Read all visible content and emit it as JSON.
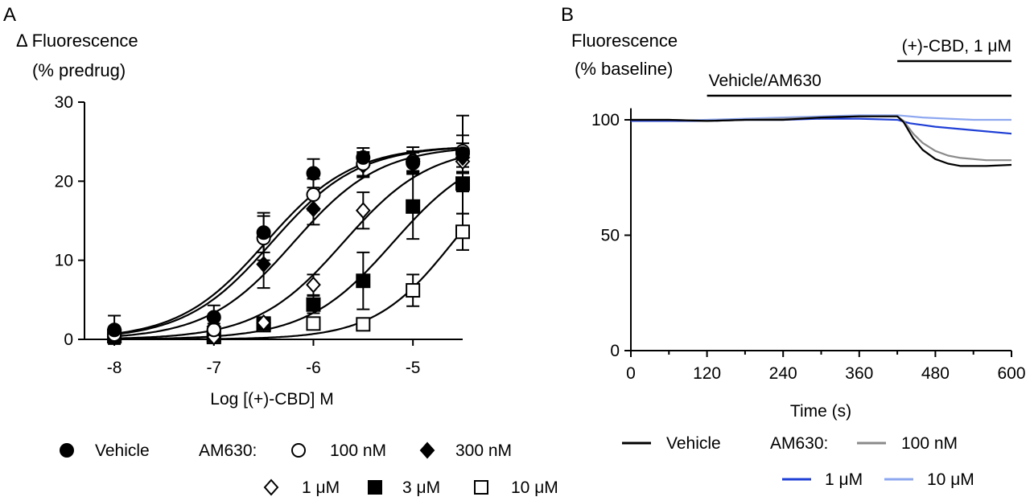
{
  "chart_data": [
    {
      "panel": "A",
      "type": "scatter",
      "ylabel_lines": [
        "Δ Fluorescence",
        "(% predrug)"
      ],
      "xlabel": "Log [(+)-CBD] M",
      "xlim": [
        -8.3,
        -4.5
      ],
      "ylim": [
        0,
        30
      ],
      "xticks": [
        -8,
        -7,
        -6,
        -5
      ],
      "xtick_labels": [
        "-8",
        "-7",
        "-6",
        "-5"
      ],
      "yticks": [
        0,
        10,
        20,
        30
      ],
      "ytick_labels": [
        "0",
        "10",
        "20",
        "30"
      ],
      "grid": false,
      "legend_position": "bottom",
      "legend_group_label": "AM630:",
      "fit": "sigmoidal concentration-response curves",
      "series": [
        {
          "name": "Vehicle",
          "marker": "filled-circle",
          "x": [
            -8,
            -7,
            -6.5,
            -6,
            -5.5,
            -5,
            -4.5
          ],
          "y": [
            1.2,
            2.8,
            13.5,
            21,
            23,
            22.3,
            23.5
          ],
          "err": [
            1.8,
            1.5,
            2.5,
            1.8,
            1.2,
            1.3,
            4.8
          ],
          "fit": {
            "bottom": 0,
            "top": 24.5,
            "logEC50": -6.48,
            "hill": 1.0
          }
        },
        {
          "name": "100 nM",
          "marker": "open-circle",
          "x": [
            -8,
            -7,
            -6.5,
            -6,
            -5.5,
            -5,
            -4.5
          ],
          "y": [
            0.6,
            1.2,
            12.8,
            18.3,
            22.2,
            22.5,
            23.8
          ],
          "err": [
            0.8,
            0.8,
            2.8,
            2.0,
            1.5,
            1.3,
            2.0
          ],
          "fit": {
            "bottom": 0,
            "top": 24.5,
            "logEC50": -6.42,
            "hill": 1.0
          }
        },
        {
          "name": "300 nM",
          "marker": "filled-diamond",
          "x": [
            -8,
            -7,
            -6.5,
            -6,
            -5.5,
            -5,
            -4.5
          ],
          "y": [
            0.7,
            1.6,
            9.5,
            16.5,
            22.0,
            22.5,
            23.0
          ],
          "err": [
            0.6,
            1.0,
            3.0,
            2.0,
            1.5,
            1.3,
            1.8
          ],
          "fit": {
            "bottom": 0,
            "top": 24.5,
            "logEC50": -6.2,
            "hill": 1.0
          }
        },
        {
          "name": "1 μM",
          "marker": "open-diamond",
          "x": [
            -8,
            -7,
            -6.5,
            -6,
            -5.5,
            -5,
            -4.5
          ],
          "y": [
            0.4,
            0.3,
            2.1,
            6.9,
            16.3,
            22.8,
            22.5
          ],
          "err": [
            0.3,
            0.4,
            0.6,
            1.3,
            2.3,
            1.5,
            1.5
          ],
          "fit": {
            "bottom": 0,
            "top": 24.5,
            "logEC50": -5.7,
            "hill": 1.0
          }
        },
        {
          "name": "3 μM",
          "marker": "filled-square",
          "x": [
            -8,
            -7,
            -6.5,
            -6,
            -5.5,
            -5,
            -4.5
          ],
          "y": [
            0.4,
            0.5,
            2.0,
            4.4,
            7.4,
            16.8,
            19.7
          ],
          "err": [
            0.3,
            0.4,
            0.5,
            1.1,
            3.6,
            4.1,
            3.8
          ],
          "fit": {
            "bottom": 0,
            "top": 24.5,
            "logEC50": -5.2,
            "hill": 1.0
          }
        },
        {
          "name": "10 μM",
          "marker": "open-square",
          "x": [
            -8,
            -7,
            -6.5,
            -6,
            -5.5,
            -5,
            -4.5
          ],
          "y": [
            0.4,
            0.3,
            1.8,
            2.0,
            1.9,
            6.2,
            13.6
          ],
          "err": [
            0.3,
            0.3,
            0.4,
            0.5,
            0.4,
            2.0,
            2.3
          ],
          "fit": {
            "bottom": 0,
            "top": 24.5,
            "logEC50": -4.6,
            "hill": 1.1
          }
        }
      ]
    },
    {
      "panel": "B",
      "type": "line",
      "ylabel_lines": [
        "Fluorescence",
        "(% baseline)"
      ],
      "xlabel": "Time (s)",
      "xlim": [
        0,
        600
      ],
      "ylim": [
        0,
        105
      ],
      "xticks": [
        0,
        120,
        240,
        360,
        480,
        600
      ],
      "xtick_labels": [
        "0",
        "120",
        "240",
        "360",
        "480",
        "600"
      ],
      "yticks": [
        0,
        50,
        100
      ],
      "ytick_labels": [
        "0",
        "50",
        "100"
      ],
      "grid": false,
      "legend_position": "bottom",
      "legend_group_label": "AM630:",
      "annotations": [
        {
          "text": "Vehicle/AM630",
          "x_start": 120,
          "x_end": 600
        },
        {
          "text": "(+)-CBD, 1 μM",
          "x_start": 420,
          "x_end": 600
        }
      ],
      "series": [
        {
          "name": "Vehicle",
          "color": "#000000",
          "x": [
            0,
            60,
            120,
            180,
            240,
            300,
            360,
            420,
            430,
            445,
            460,
            480,
            500,
            520,
            560,
            600
          ],
          "y": [
            100,
            100,
            99.5,
            100,
            100,
            101,
            101.5,
            101.5,
            99,
            92,
            87,
            83,
            81,
            80,
            80,
            80.5
          ]
        },
        {
          "name": "100 nM",
          "color": "#8a8a8a",
          "x": [
            0,
            60,
            120,
            180,
            240,
            300,
            360,
            420,
            430,
            445,
            460,
            480,
            500,
            520,
            560,
            600
          ],
          "y": [
            100,
            100,
            99.5,
            100,
            100.5,
            101,
            101.5,
            101.5,
            99.5,
            94,
            90,
            86.5,
            84.5,
            83.5,
            82.5,
            82.5
          ]
        },
        {
          "name": "1 μM",
          "color": "#1f3fd6",
          "x": [
            0,
            60,
            120,
            180,
            240,
            300,
            360,
            420,
            440,
            480,
            520,
            560,
            600
          ],
          "y": [
            99.5,
            99.5,
            99.5,
            100,
            100,
            100.5,
            100.5,
            100,
            98.5,
            97,
            96,
            95,
            94
          ]
        },
        {
          "name": "10 μM",
          "color": "#8ea8f0",
          "x": [
            0,
            60,
            120,
            180,
            240,
            300,
            360,
            420,
            460,
            500,
            540,
            600
          ],
          "y": [
            99.5,
            99.5,
            100,
            100.5,
            101,
            101.5,
            102,
            102,
            101,
            100.5,
            100,
            100
          ]
        }
      ]
    }
  ]
}
